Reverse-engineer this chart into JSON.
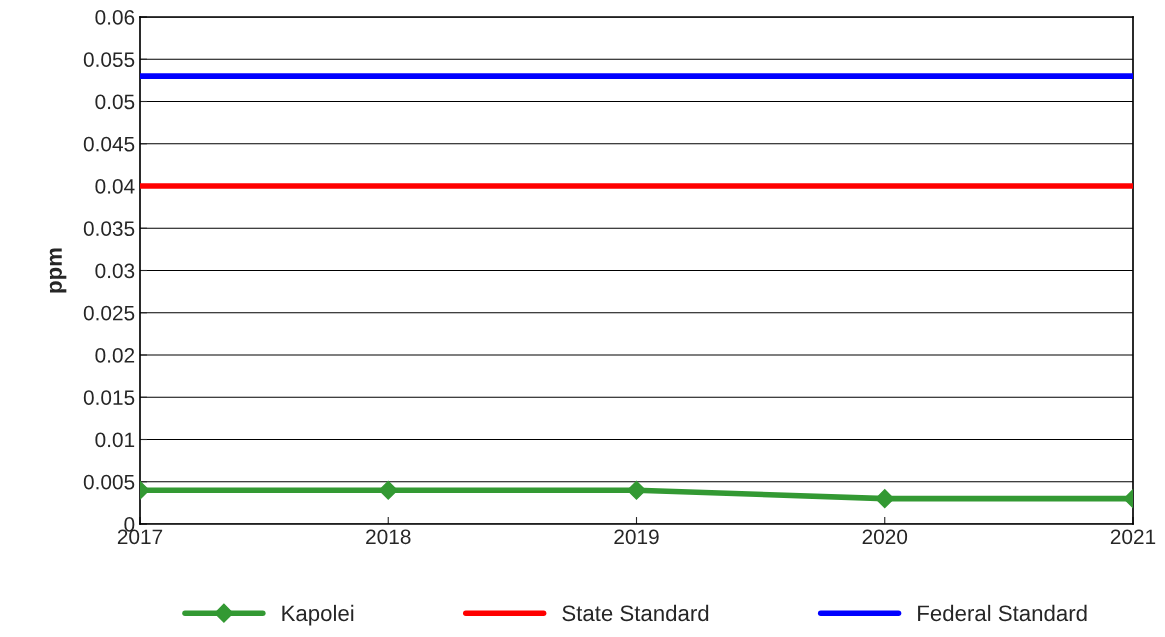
{
  "chart_data": {
    "type": "line",
    "ylabel": "ppm",
    "x": [
      2017,
      2018,
      2019,
      2020,
      2021
    ],
    "series": [
      {
        "name": "Kapolei",
        "color": "#339933",
        "marker": "diamond",
        "values": [
          0.004,
          0.004,
          0.004,
          0.003,
          0.003
        ]
      },
      {
        "name": "State Standard",
        "color": "#ff0000",
        "marker": "none",
        "values": [
          0.04,
          0.04,
          0.04,
          0.04,
          0.04
        ]
      },
      {
        "name": "Federal Standard",
        "color": "#0000ff",
        "marker": "none",
        "values": [
          0.053,
          0.053,
          0.053,
          0.053,
          0.053
        ]
      }
    ],
    "xlim": [
      2017,
      2021
    ],
    "xticks": [
      2017,
      2018,
      2019,
      2020,
      2021
    ],
    "ylim": [
      0,
      0.06
    ],
    "yticks": [
      0,
      0.005,
      0.01,
      0.015,
      0.02,
      0.025,
      0.03,
      0.035,
      0.04,
      0.045,
      0.05,
      0.055,
      0.06
    ],
    "grid": "y",
    "legend": "bottom",
    "line_style": "solid"
  }
}
